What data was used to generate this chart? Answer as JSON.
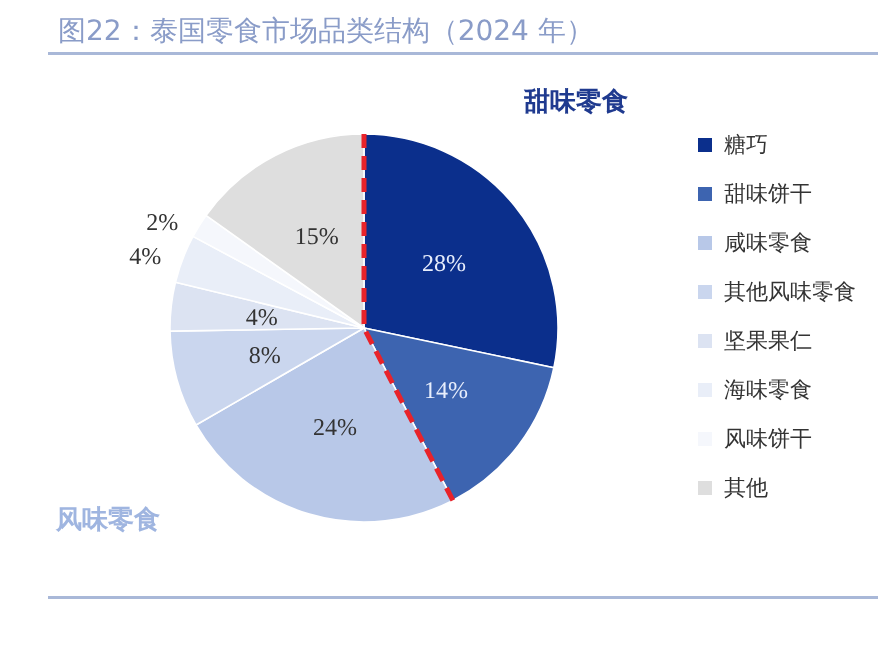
{
  "chart_data": {
    "type": "pie",
    "title": "图22：泰国零食市场品类结构（2024 年）",
    "categories": [
      "糖巧",
      "甜味饼干",
      "咸味零食",
      "其他风味零食",
      "坚果果仁",
      "海味零食",
      "风味饼干",
      "其他"
    ],
    "values": [
      28,
      14,
      24,
      8,
      4,
      4,
      2,
      15
    ],
    "colors": [
      "#0b2f8c",
      "#3d64b0",
      "#b8c8e8",
      "#cad6ee",
      "#dce3f2",
      "#e9eef8",
      "#f5f7fc",
      "#dedede"
    ],
    "value_labels": [
      "28%",
      "14%",
      "24%",
      "8%",
      "4%",
      "4%",
      "2%",
      "15%"
    ],
    "legend": "right",
    "annotations": [
      "甜味零食",
      "风味零食"
    ]
  }
}
